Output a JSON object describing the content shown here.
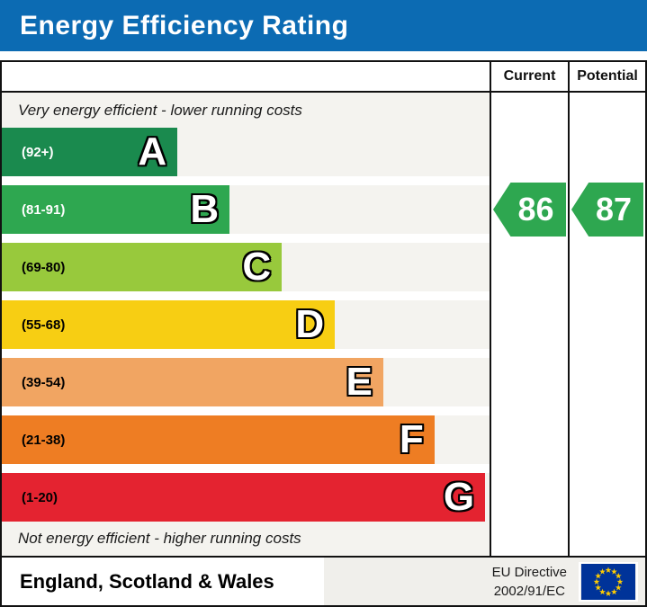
{
  "title_bar": {
    "title": "Energy Efficiency Rating"
  },
  "colors": {
    "title_bar_bg": "#0c6bb3",
    "panel_bg": "#f4f3ef",
    "footer_right_bg": "#f0efeb",
    "border": "#111111",
    "arrow_green": "#2ea750",
    "eu_flag_blue": "#003399",
    "eu_flag_star": "#ffcc00"
  },
  "table": {
    "headers": {
      "current": "Current",
      "potential": "Potential"
    },
    "top_note": "Very energy efficient - lower running costs",
    "bottom_note": "Not energy efficient - higher running costs"
  },
  "chart_data": {
    "type": "bar",
    "title": "Energy Efficiency Rating",
    "categories": [
      "A",
      "B",
      "C",
      "D",
      "E",
      "F",
      "G"
    ],
    "bands": [
      {
        "letter": "A",
        "range": "(92+)",
        "color": "#1a8a4e",
        "label_color": "#ffffff",
        "width_pct": 36.0
      },
      {
        "letter": "B",
        "range": "(81-91)",
        "color": "#2ea750",
        "label_color": "#ffffff",
        "width_pct": 46.7
      },
      {
        "letter": "C",
        "range": "(69-80)",
        "color": "#98c93c",
        "label_color": "#000000",
        "width_pct": 57.4
      },
      {
        "letter": "D",
        "range": "(55-68)",
        "color": "#f7ce13",
        "label_color": "#000000",
        "width_pct": 68.3
      },
      {
        "letter": "E",
        "range": "(39-54)",
        "color": "#f1a562",
        "label_color": "#000000",
        "width_pct": 78.2
      },
      {
        "letter": "F",
        "range": "(21-38)",
        "color": "#ee7d23",
        "label_color": "#000000",
        "width_pct": 88.7
      },
      {
        "letter": "G",
        "range": "(1-20)",
        "color": "#e42330",
        "label_color": "#000000",
        "width_pct": 99.1
      }
    ],
    "current": {
      "value": "86",
      "band": "B",
      "color": "#2ea750"
    },
    "potential": {
      "value": "87",
      "band": "B",
      "color": "#2ea750"
    }
  },
  "footer": {
    "region": "England, Scotland & Wales",
    "directive_line1": "EU Directive",
    "directive_line2": "2002/91/EC",
    "flag_icon": "eu-flag"
  }
}
